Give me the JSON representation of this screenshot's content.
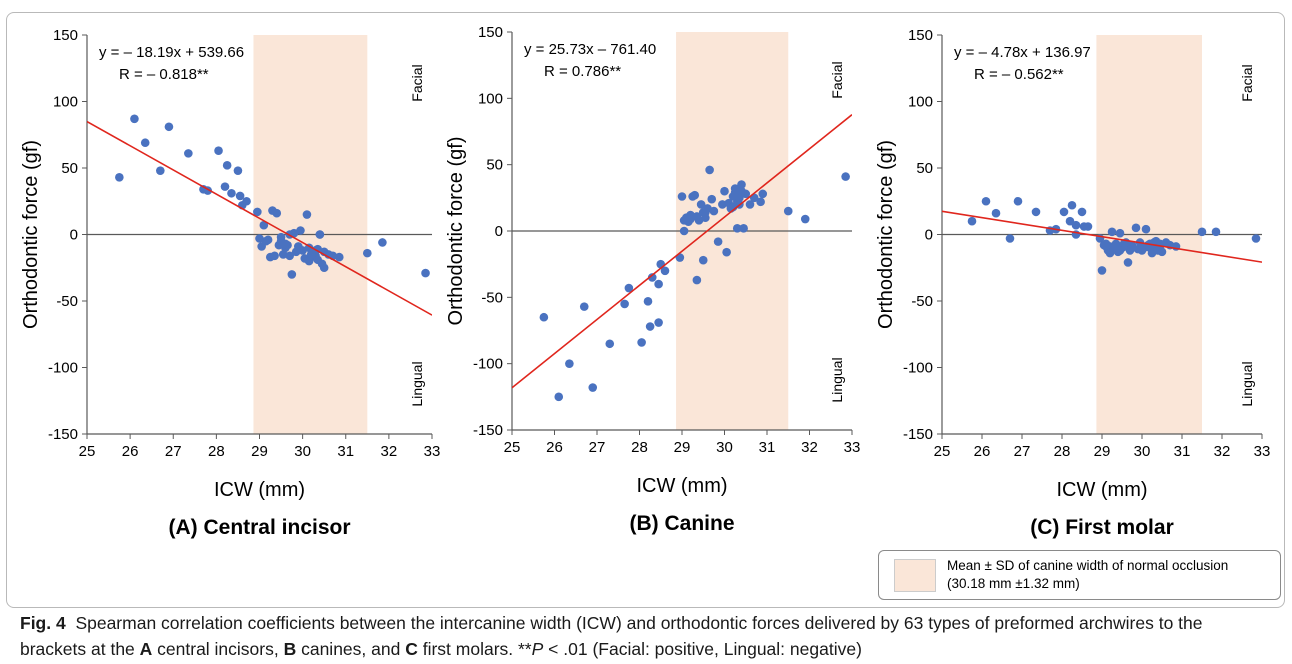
{
  "colors": {
    "point": "#4a72c0",
    "fit_line": "#e0261d",
    "band": "#fae6d8",
    "axis": "#595959",
    "text": "#000000"
  },
  "legend": {
    "line1": "Mean ± SD of canine width of normal occlusion",
    "line2": "(30.18 mm ±1.32 mm)"
  },
  "caption": {
    "fig_label": "Fig. 4",
    "part1": "Spearman correlation coefficients between the intercanine width (ICW) and orthodontic forces delivered by 63 types of preformed archwires to the brackets at the ",
    "a": "A",
    "part2": " central incisors, ",
    "b": "B",
    "part3": " canines, and ",
    "c": "C",
    "part4": " first molars. **",
    "p": "P",
    "part5": " < .01 (Facial: positive, Lingual: negative)"
  },
  "chart_data": [
    {
      "type": "scatter",
      "title": "(A) Central incisor",
      "xlabel": "ICW (mm)",
      "ylabel": "Orthodontic force (gf)",
      "xlim": [
        25,
        33
      ],
      "ylim": [
        -150,
        150
      ],
      "xticks": [
        25,
        26,
        27,
        28,
        29,
        30,
        31,
        32,
        33
      ],
      "yticks": [
        150,
        100,
        50,
        0,
        -50,
        -100,
        -150
      ],
      "grid": false,
      "band": [
        28.86,
        31.5
      ],
      "equation": "y = – 18.19x + 539.66",
      "r_text": "R = – 0.818**",
      "facial_label": "Facial",
      "lingual_label": "Lingual",
      "fit": {
        "slope": -18.19,
        "intercept": 539.66
      },
      "points": [
        [
          25.75,
          43
        ],
        [
          26.1,
          87
        ],
        [
          26.35,
          69
        ],
        [
          26.7,
          48
        ],
        [
          26.9,
          81
        ],
        [
          27.35,
          61
        ],
        [
          27.7,
          34
        ],
        [
          27.8,
          33
        ],
        [
          28.05,
          63
        ],
        [
          28.2,
          36
        ],
        [
          28.25,
          52
        ],
        [
          28.35,
          31
        ],
        [
          28.5,
          48
        ],
        [
          28.55,
          29
        ],
        [
          28.6,
          22
        ],
        [
          28.7,
          25
        ],
        [
          28.95,
          17
        ],
        [
          29.0,
          -3
        ],
        [
          29.05,
          -9
        ],
        [
          29.1,
          7
        ],
        [
          29.15,
          -5
        ],
        [
          29.2,
          -4
        ],
        [
          29.25,
          -17
        ],
        [
          29.3,
          18
        ],
        [
          29.35,
          -16
        ],
        [
          29.4,
          16
        ],
        [
          29.45,
          -8
        ],
        [
          29.5,
          -2
        ],
        [
          29.55,
          -15
        ],
        [
          29.6,
          -10
        ],
        [
          29.65,
          -8
        ],
        [
          29.7,
          -16
        ],
        [
          29.75,
          -30
        ],
        [
          29.8,
          1
        ],
        [
          29.9,
          -9
        ],
        [
          29.95,
          3
        ],
        [
          30.0,
          -12
        ],
        [
          30.05,
          -18
        ],
        [
          30.1,
          15
        ],
        [
          30.15,
          -10
        ],
        [
          30.2,
          -17
        ],
        [
          30.25,
          -14
        ],
        [
          30.3,
          -16
        ],
        [
          30.35,
          -19
        ],
        [
          30.4,
          0
        ],
        [
          30.45,
          -22
        ],
        [
          30.5,
          -13
        ],
        [
          30.5,
          -25
        ],
        [
          30.7,
          -16
        ],
        [
          30.85,
          -17
        ],
        [
          30.6,
          -15
        ],
        [
          29.7,
          0
        ],
        [
          30.4,
          0
        ],
        [
          30.3,
          -12
        ],
        [
          30.15,
          -20
        ],
        [
          29.5,
          -5
        ],
        [
          29.6,
          -7
        ],
        [
          31.5,
          -14
        ],
        [
          31.85,
          -6
        ],
        [
          32.85,
          -29
        ],
        [
          30.2,
          -15
        ],
        [
          29.85,
          -13
        ],
        [
          30.35,
          -11
        ]
      ]
    },
    {
      "type": "scatter",
      "title": "(B) Canine",
      "xlabel": "ICW (mm)",
      "ylabel": "Orthodontic force (gf)",
      "xlim": [
        25,
        33
      ],
      "ylim": [
        -150,
        150
      ],
      "xticks": [
        25,
        26,
        27,
        28,
        29,
        30,
        31,
        32,
        33
      ],
      "yticks": [
        150,
        100,
        50,
        0,
        -50,
        -100,
        -150
      ],
      "grid": false,
      "band": [
        28.86,
        31.5
      ],
      "equation": "y = 25.73x – 761.40",
      "r_text": "R = 0.786**",
      "facial_label": "Facial",
      "lingual_label": "Lingual",
      "fit": {
        "slope": 25.73,
        "intercept": -761.4
      },
      "points": [
        [
          25.75,
          -65
        ],
        [
          26.1,
          -125
        ],
        [
          26.35,
          -100
        ],
        [
          26.7,
          -57
        ],
        [
          26.9,
          -118
        ],
        [
          27.3,
          -85
        ],
        [
          27.65,
          -55
        ],
        [
          27.75,
          -43
        ],
        [
          28.05,
          -84
        ],
        [
          28.2,
          -53
        ],
        [
          28.25,
          -72
        ],
        [
          28.3,
          -35
        ],
        [
          28.45,
          -69
        ],
        [
          28.45,
          -40
        ],
        [
          28.5,
          -25
        ],
        [
          28.6,
          -30
        ],
        [
          28.95,
          -20
        ],
        [
          29.0,
          26
        ],
        [
          29.05,
          8
        ],
        [
          29.1,
          10
        ],
        [
          29.15,
          7
        ],
        [
          29.2,
          12
        ],
        [
          29.25,
          26
        ],
        [
          29.3,
          27
        ],
        [
          29.35,
          11
        ],
        [
          29.4,
          8
        ],
        [
          29.45,
          20
        ],
        [
          29.5,
          14
        ],
        [
          29.55,
          10
        ],
        [
          29.6,
          17
        ],
        [
          29.65,
          46
        ],
        [
          29.7,
          24
        ],
        [
          29.75,
          15
        ],
        [
          29.85,
          -8
        ],
        [
          29.95,
          20
        ],
        [
          30.0,
          30
        ],
        [
          30.05,
          -16
        ],
        [
          30.1,
          21
        ],
        [
          30.15,
          17
        ],
        [
          30.2,
          26
        ],
        [
          30.25,
          32
        ],
        [
          30.3,
          22
        ],
        [
          30.35,
          25
        ],
        [
          30.4,
          35
        ],
        [
          30.45,
          2
        ],
        [
          30.5,
          28
        ],
        [
          30.6,
          20
        ],
        [
          30.7,
          25
        ],
        [
          30.85,
          22
        ],
        [
          30.9,
          28
        ],
        [
          31.5,
          15
        ],
        [
          31.9,
          9
        ],
        [
          32.85,
          41
        ],
        [
          30.3,
          2
        ],
        [
          29.35,
          -37
        ],
        [
          29.5,
          -22
        ],
        [
          29.05,
          0
        ],
        [
          29.2,
          9
        ],
        [
          30.35,
          20
        ],
        [
          30.2,
          18
        ],
        [
          29.55,
          14
        ],
        [
          30.25,
          29
        ],
        [
          30.4,
          30
        ]
      ]
    },
    {
      "type": "scatter",
      "title": "(C) First molar",
      "xlabel": "ICW (mm)",
      "ylabel": "Orthodontic force (gf)",
      "xlim": [
        25,
        33
      ],
      "ylim": [
        -150,
        150
      ],
      "xticks": [
        25,
        26,
        27,
        28,
        29,
        30,
        31,
        32,
        33
      ],
      "yticks": [
        150,
        100,
        50,
        0,
        -50,
        -100,
        -150
      ],
      "grid": false,
      "band": [
        28.86,
        31.5
      ],
      "equation": "y = – 4.78x + 136.97",
      "r_text": "R = – 0.562**",
      "facial_label": "Facial",
      "lingual_label": "Lingual",
      "fit": {
        "slope": -4.78,
        "intercept": 136.97
      },
      "points": [
        [
          25.75,
          10
        ],
        [
          26.1,
          25
        ],
        [
          26.35,
          16
        ],
        [
          26.7,
          -3
        ],
        [
          26.9,
          25
        ],
        [
          27.35,
          17
        ],
        [
          27.7,
          3
        ],
        [
          27.85,
          4
        ],
        [
          28.05,
          17
        ],
        [
          28.2,
          10
        ],
        [
          28.25,
          22
        ],
        [
          28.35,
          0
        ],
        [
          28.35,
          7
        ],
        [
          28.5,
          17
        ],
        [
          28.55,
          6
        ],
        [
          28.65,
          6
        ],
        [
          28.95,
          -3
        ],
        [
          29.0,
          -27
        ],
        [
          29.05,
          -8
        ],
        [
          29.1,
          -7
        ],
        [
          29.15,
          -12
        ],
        [
          29.2,
          -9
        ],
        [
          29.25,
          2
        ],
        [
          29.3,
          -11
        ],
        [
          29.35,
          -7
        ],
        [
          29.4,
          -13
        ],
        [
          29.45,
          1
        ],
        [
          29.5,
          -10
        ],
        [
          29.55,
          -7
        ],
        [
          29.6,
          -9
        ],
        [
          29.65,
          -21
        ],
        [
          29.7,
          -12
        ],
        [
          29.75,
          -8
        ],
        [
          29.85,
          5
        ],
        [
          29.95,
          -6
        ],
        [
          30.0,
          -12
        ],
        [
          30.05,
          -10
        ],
        [
          30.1,
          4
        ],
        [
          30.15,
          -8
        ],
        [
          30.2,
          -7
        ],
        [
          30.25,
          -14
        ],
        [
          30.3,
          -9
        ],
        [
          30.35,
          -5
        ],
        [
          30.4,
          -12
        ],
        [
          30.45,
          -11
        ],
        [
          30.5,
          -13
        ],
        [
          30.6,
          -6
        ],
        [
          30.7,
          -8
        ],
        [
          30.85,
          -9
        ],
        [
          31.5,
          2
        ],
        [
          31.85,
          2
        ],
        [
          32.85,
          -3
        ],
        [
          29.3,
          -10
        ],
        [
          29.45,
          -12
        ],
        [
          29.9,
          -11
        ],
        [
          30.2,
          -10
        ],
        [
          29.6,
          -6
        ],
        [
          29.1,
          -9
        ],
        [
          30.3,
          -6
        ],
        [
          29.2,
          -14
        ],
        [
          30.0,
          -9
        ],
        [
          29.75,
          -10
        ],
        [
          30.45,
          -7
        ]
      ]
    }
  ]
}
